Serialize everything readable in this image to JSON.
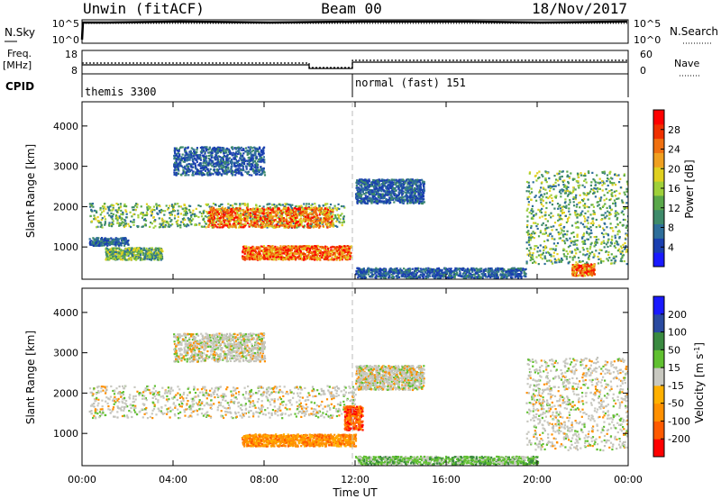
{
  "header": {
    "title_left": "Unwin (fitACF)",
    "title_center": "Beam 00",
    "title_right": "18/Nov/2017"
  },
  "top_panels": {
    "nsky_label": "N.Sky",
    "nsky_ticks": [
      "10^5",
      "10^0"
    ],
    "nsearch_label": "N.Search",
    "nsearch_ticks": [
      "10^5",
      "10^0"
    ],
    "freq_label": "Freq.",
    "freq_unit": "[MHz]",
    "freq_ticks": [
      "18",
      "8"
    ],
    "nave_label": "Nave",
    "nave_ticks": [
      "60",
      "0"
    ],
    "cpid_label": "CPID",
    "cpid_segments": [
      {
        "label": "themis 3300",
        "start_hour": 0,
        "end_hour": 12
      },
      {
        "label": "normal (fast) 151",
        "start_hour": 12,
        "end_hour": 24
      }
    ]
  },
  "chart_data": [
    {
      "type": "heatmap",
      "quantity": "Power",
      "ylabel": "Slant Range [km]",
      "ylim": [
        200,
        4600
      ],
      "yticks": [
        1000,
        2000,
        3000,
        4000
      ],
      "xlim": [
        0,
        24
      ],
      "colorbar": {
        "label": "Power [dB]",
        "ticks": [
          4,
          8,
          12,
          16,
          20,
          24,
          28
        ],
        "range": [
          0,
          32
        ]
      },
      "regions": [
        {
          "t0": 0.3,
          "t1": 11.5,
          "r0": 1500,
          "r1": 2100,
          "level": "mid"
        },
        {
          "t0": 5.5,
          "t1": 11.0,
          "r0": 1500,
          "r1": 2000,
          "level": "high"
        },
        {
          "t0": 7.0,
          "t1": 11.8,
          "r0": 700,
          "r1": 1050,
          "level": "high"
        },
        {
          "t0": 1.0,
          "t1": 3.5,
          "r0": 700,
          "r1": 1000,
          "level": "mid"
        },
        {
          "t0": 0.3,
          "t1": 2.0,
          "r0": 1050,
          "r1": 1250,
          "level": "low"
        },
        {
          "t0": 4.0,
          "t1": 8.0,
          "r0": 2800,
          "r1": 3500,
          "level": "low"
        },
        {
          "t0": 12.0,
          "t1": 15.0,
          "r0": 2100,
          "r1": 2700,
          "level": "low"
        },
        {
          "t0": 12.0,
          "t1": 19.5,
          "r0": 250,
          "r1": 500,
          "level": "low"
        },
        {
          "t0": 19.5,
          "t1": 24.0,
          "r0": 600,
          "r1": 2900,
          "level": "mid"
        },
        {
          "t0": 21.5,
          "t1": 22.5,
          "r0": 300,
          "r1": 600,
          "level": "high"
        }
      ]
    },
    {
      "type": "heatmap",
      "quantity": "Velocity",
      "ylabel": "Slant Range [km]",
      "ylim": [
        200,
        4600
      ],
      "yticks": [
        1000,
        2000,
        3000,
        4000
      ],
      "xlim": [
        0,
        24
      ],
      "xticks": [
        "00:00",
        "04:00",
        "08:00",
        "12:00",
        "16:00",
        "20:00",
        "00:00"
      ],
      "xlabel": "Time UT",
      "colorbar": {
        "label": "Velocity [m s^-1]",
        "ticks": [
          200,
          100,
          50,
          15,
          -15,
          -50,
          -100,
          -200
        ]
      },
      "regions": [
        {
          "t0": 0.3,
          "t1": 12.0,
          "r0": 1400,
          "r1": 2200,
          "level": "near-zero"
        },
        {
          "t0": 7.0,
          "t1": 12.0,
          "r0": 700,
          "r1": 1000,
          "level": "negative"
        },
        {
          "t0": 11.5,
          "t1": 12.3,
          "r0": 1100,
          "r1": 1700,
          "level": "strong-negative"
        },
        {
          "t0": 4.0,
          "t1": 8.0,
          "r0": 2800,
          "r1": 3500,
          "level": "near-zero"
        },
        {
          "t0": 12.0,
          "t1": 15.0,
          "r0": 2100,
          "r1": 2700,
          "level": "near-zero"
        },
        {
          "t0": 12.0,
          "t1": 20.0,
          "r0": 250,
          "r1": 450,
          "level": "positive"
        },
        {
          "t0": 19.5,
          "t1": 24.0,
          "r0": 600,
          "r1": 2900,
          "level": "near-zero"
        }
      ]
    }
  ]
}
